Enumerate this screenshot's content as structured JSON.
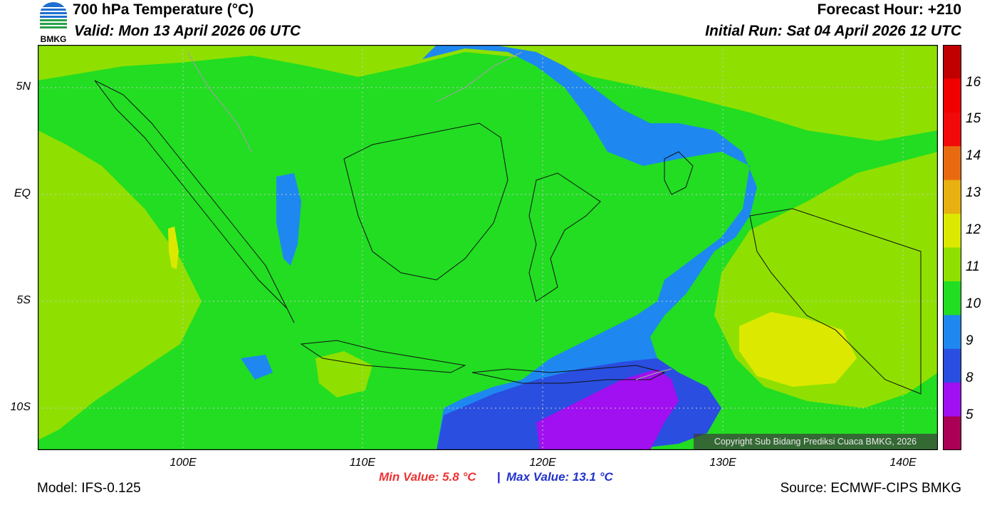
{
  "header": {
    "title": "700 hPa Temperature (°C)",
    "valid": "Valid: Mon 13 April 2026 06 UTC",
    "forecast_hour": "Forecast Hour: +210",
    "initial_run": "Initial Run: Sat 04 April 2026 12 UTC",
    "logo_text": "BMKG"
  },
  "map": {
    "lat_labels": [
      "5N",
      "EQ",
      "5S",
      "10S"
    ],
    "lon_labels": [
      "100E",
      "110E",
      "120E",
      "130E",
      "140E"
    ],
    "copyright": "Copyright Sub Bidang Prediksi Cuaca BMKG, 2026",
    "colors": {
      "light_green": "#8fe000",
      "green": "#22dd22",
      "blue": "#1e88f0",
      "dark_blue": "#2a4ee0",
      "violet": "#a010f0",
      "yellow": "#dde800"
    }
  },
  "colorbar": {
    "labels": [
      "16",
      "15",
      "14",
      "13",
      "12",
      "11",
      "10",
      "9",
      "8",
      "5"
    ],
    "colors": [
      "#c00000",
      "#f00000",
      "#f20a0a",
      "#e86a10",
      "#e8b010",
      "#dde800",
      "#8fe000",
      "#22dd22",
      "#1e88f0",
      "#2a4ee0",
      "#a010f0",
      "#aa0055"
    ]
  },
  "footer": {
    "min_value": "Min Value: 5.8 °C",
    "separator": "|",
    "max_value": "Max Value: 13.1 °C",
    "model": "Model: IFS-0.125",
    "source": "Source: ECMWF-CIPS BMKG"
  }
}
